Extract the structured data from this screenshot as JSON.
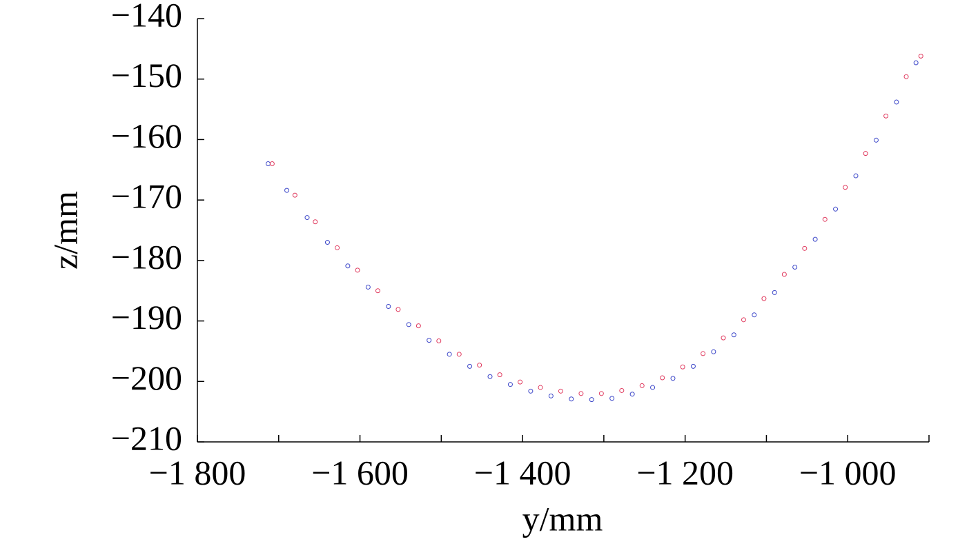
{
  "chart_data": {
    "type": "scatter",
    "xlabel": "y/mm",
    "ylabel": "z/mm",
    "xlim": [
      -1800,
      -900
    ],
    "ylim": [
      -210,
      -140
    ],
    "xticks": [
      {
        "value": -1800,
        "label": "−1 800"
      },
      {
        "value": -1600,
        "label": "−1 600"
      },
      {
        "value": -1400,
        "label": "−1 400"
      },
      {
        "value": -1200,
        "label": "−1 200"
      },
      {
        "value": -1000,
        "label": "−1 000"
      }
    ],
    "xminor_ticks": [
      -1700,
      -1500,
      -1300,
      -1100,
      -900
    ],
    "yticks": [
      {
        "value": -140,
        "label": "−140"
      },
      {
        "value": -150,
        "label": "−150"
      },
      {
        "value": -160,
        "label": "−160"
      },
      {
        "value": -170,
        "label": "−170"
      },
      {
        "value": -180,
        "label": "−180"
      },
      {
        "value": -190,
        "label": "−190"
      },
      {
        "value": -200,
        "label": "−200"
      },
      {
        "value": -210,
        "label": "−210"
      }
    ],
    "series": [
      {
        "color": "#3a45c8",
        "x": [
          -1713,
          -1690,
          -1665,
          -1640,
          -1615,
          -1590,
          -1565,
          -1540,
          -1515,
          -1490,
          -1465,
          -1440,
          -1415,
          -1390,
          -1365,
          -1340,
          -1315,
          -1290,
          -1265,
          -1240,
          -1215,
          -1190,
          -1165,
          -1140,
          -1115,
          -1090,
          -1065,
          -1040,
          -1015,
          -990,
          -965,
          -940,
          -916
        ],
        "values": [
          -164.0,
          -168.4,
          -172.9,
          -177.0,
          -180.9,
          -184.4,
          -187.6,
          -190.6,
          -193.2,
          -195.5,
          -197.5,
          -199.2,
          -200.5,
          -201.6,
          -202.4,
          -202.9,
          -203.0,
          -202.8,
          -202.1,
          -201.0,
          -199.5,
          -197.5,
          -195.1,
          -192.3,
          -189.0,
          -185.3,
          -181.1,
          -176.5,
          -171.5,
          -166.0,
          -160.1,
          -153.8,
          -147.3
        ]
      },
      {
        "color": "#e03a5e",
        "x": [
          -1708,
          -1680,
          -1655,
          -1628,
          -1603,
          -1578,
          -1553,
          -1528,
          -1503,
          -1478,
          -1453,
          -1428,
          -1403,
          -1378,
          -1353,
          -1328,
          -1303,
          -1278,
          -1253,
          -1228,
          -1203,
          -1178,
          -1153,
          -1128,
          -1103,
          -1078,
          -1053,
          -1028,
          -1003,
          -978,
          -953,
          -928,
          -910
        ],
        "values": [
          -164.0,
          -169.2,
          -173.6,
          -177.9,
          -181.6,
          -185.0,
          -188.1,
          -190.8,
          -193.3,
          -195.5,
          -197.3,
          -198.9,
          -200.1,
          -201.0,
          -201.6,
          -202.0,
          -202.0,
          -201.5,
          -200.7,
          -199.4,
          -197.6,
          -195.4,
          -192.8,
          -189.8,
          -186.3,
          -182.3,
          -178.0,
          -173.2,
          -167.9,
          -162.3,
          -156.1,
          -149.6,
          -146.2
        ]
      }
    ]
  }
}
